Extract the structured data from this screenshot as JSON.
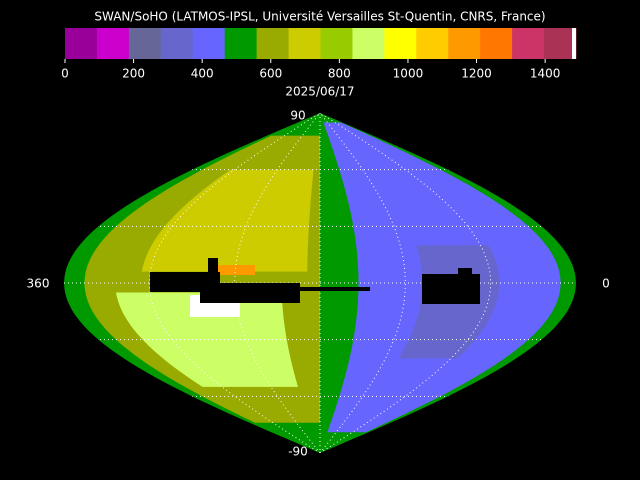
{
  "title": "SWAN/SoHO (LATMOS-IPSL, Université Versailles St-Quentin, CNRS, France)",
  "colorbar": {
    "lim": [
      0,
      1490
    ],
    "ticks": [
      0,
      200,
      400,
      600,
      800,
      1000,
      1200,
      1400
    ],
    "colors": [
      "#990099",
      "#cc00cc",
      "#666699",
      "#6666cc",
      "#6666ff",
      "#009900",
      "#99aa00",
      "#cccc00",
      "#99cc00",
      "#ccff66",
      "#ffff00",
      "#ffcc00",
      "#ff9900",
      "#ff7700",
      "#cc3366",
      "#aa3355"
    ]
  },
  "date": "2025/06/17",
  "map": {
    "top": "90",
    "bottom": "-90",
    "left": "360",
    "right": "0"
  }
}
